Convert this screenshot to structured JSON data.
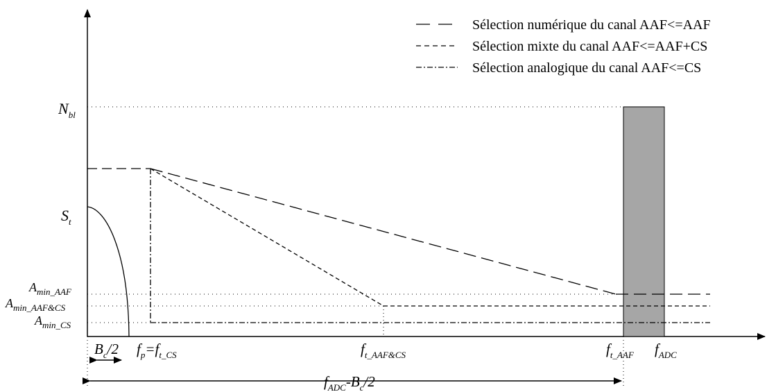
{
  "legend": {
    "items": [
      {
        "style": "long-dash",
        "label": "Sélection numérique du canal AAF<=AAF"
      },
      {
        "style": "short-dash",
        "label": "Sélection mixte du canal AAF<=AAF+CS"
      },
      {
        "style": "dash-dot",
        "label": "Sélection analogique du canal AAF<=CS"
      }
    ]
  },
  "y_labels": {
    "nbl": {
      "main": "N",
      "sub": "bl"
    },
    "st": {
      "main": "S",
      "sub": "t"
    },
    "aaf": {
      "main": "A",
      "sub": "min_AAF"
    },
    "aafcs": {
      "main": "A",
      "sub": "min_AAF&CS"
    },
    "cs": {
      "main": "A",
      "sub": "min_CS"
    }
  },
  "x_labels": {
    "bc2": {
      "main": "B",
      "sub": "c",
      "rest": "/2"
    },
    "fp": {
      "main": "f",
      "sub": "p",
      "rest": "=f",
      "sub2": "t_CS"
    },
    "faafcs": {
      "main": "f",
      "sub": "t_AAF&CS"
    },
    "faaf": {
      "main": "f",
      "sub": "t_AAF"
    },
    "fadc": {
      "main": "f",
      "sub": "ADC"
    }
  },
  "span_label": {
    "main": "f",
    "sub": "ADC",
    "rest": "-B",
    "sub2": "c",
    "rest2": "/2"
  },
  "colors": {
    "stroke": "#000000",
    "block_fill": "#a6a6a6"
  }
}
